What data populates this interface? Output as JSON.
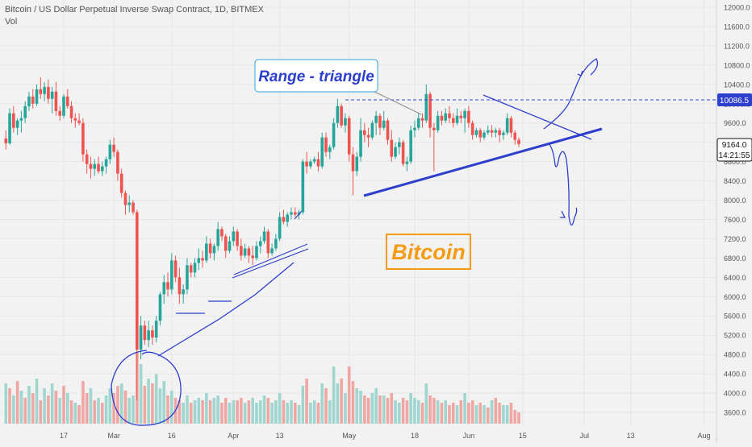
{
  "header": {
    "title": "Bitcoin / US Dollar Perpetual Inverse Swap Contract, 1D, BITMEX",
    "volume_label": "Vol"
  },
  "annotations": {
    "range_label": "Range - triangle",
    "watermark": "Bitcoin"
  },
  "price_tags": {
    "resistance": "10086.5",
    "last_price": "9164.0",
    "countdown": "14:21:55"
  },
  "colors": {
    "bull": "#26a69a",
    "bear": "#ef5350",
    "bull_vol": "#9fd6cf",
    "bear_vol": "#f0a6a3",
    "drawing": "#2d3fcc",
    "watermark": "#f39c12"
  },
  "chart_data": {
    "type": "candlestick",
    "y_axis": {
      "range": [
        3200,
        12200
      ],
      "ticks": [
        3600,
        4000,
        4400,
        4800,
        5200,
        5600,
        6000,
        6400,
        6800,
        7200,
        7600,
        8000,
        8400,
        8800,
        9200,
        9600,
        10000,
        10400,
        10800,
        11200,
        11600,
        12000
      ],
      "tick_labels": [
        "3600.0",
        "4000.0",
        "4400.0",
        "4800.0",
        "5200.0",
        "5600.0",
        "6000.0",
        "6400.0",
        "6800.0",
        "7200.0",
        "7600.0",
        "8000.0",
        "8400.0",
        "8800.0",
        "9200.0",
        "9600.0",
        "10000.0",
        "10400.0",
        "10800.0",
        "11200.0",
        "11600.0",
        "12000.0"
      ]
    },
    "x_axis": {
      "start_date": "2020-02-01",
      "tick_labels": [
        {
          "day": 16,
          "label": "17"
        },
        {
          "day": 29,
          "label": "Mar"
        },
        {
          "day": 44,
          "label": "16"
        },
        {
          "day": 60,
          "label": "Apr"
        },
        {
          "day": 72,
          "label": "13"
        },
        {
          "day": 90,
          "label": "May"
        },
        {
          "day": 107,
          "label": "18"
        },
        {
          "day": 121,
          "label": "Jun"
        },
        {
          "day": 135,
          "label": "15"
        },
        {
          "day": 151,
          "label": "Jul"
        },
        {
          "day": 163,
          "label": "13"
        },
        {
          "day": 182,
          "label": "Aug"
        }
      ]
    },
    "ohlc": [
      [
        9280,
        9450,
        9050,
        9180
      ],
      [
        9180,
        9900,
        9150,
        9800
      ],
      [
        9800,
        9950,
        9400,
        9500
      ],
      [
        9500,
        9700,
        9350,
        9650
      ],
      [
        9650,
        9850,
        9400,
        9700
      ],
      [
        9700,
        10050,
        9600,
        9950
      ],
      [
        9950,
        10250,
        9850,
        10150
      ],
      [
        10150,
        10300,
        9900,
        10000
      ],
      [
        10000,
        10400,
        9950,
        10300
      ],
      [
        10300,
        10550,
        10100,
        10200
      ],
      [
        10200,
        10450,
        10050,
        10350
      ],
      [
        10350,
        10500,
        10000,
        10100
      ],
      [
        10100,
        10350,
        9800,
        10250
      ],
      [
        10250,
        10450,
        9750,
        9850
      ],
      [
        9850,
        9950,
        9650,
        9750
      ],
      [
        9750,
        10200,
        9700,
        10150
      ],
      [
        10150,
        10300,
        9900,
        9950
      ],
      [
        9950,
        10050,
        9600,
        9700
      ],
      [
        9700,
        9800,
        9500,
        9650
      ],
      [
        9650,
        9800,
        9550,
        9600
      ],
      [
        9600,
        9700,
        8800,
        8950
      ],
      [
        8950,
        9050,
        8550,
        8750
      ],
      [
        8750,
        8900,
        8450,
        8650
      ],
      [
        8650,
        8850,
        8500,
        8750
      ],
      [
        8750,
        8900,
        8550,
        8600
      ],
      [
        8600,
        8800,
        8500,
        8700
      ],
      [
        8700,
        8900,
        8550,
        8850
      ],
      [
        8850,
        9250,
        8750,
        9150
      ],
      [
        9150,
        9300,
        8900,
        9000
      ],
      [
        9000,
        9050,
        8400,
        8550
      ],
      [
        8550,
        8650,
        8050,
        8150
      ],
      [
        8150,
        8200,
        7700,
        7900
      ],
      [
        7900,
        8100,
        7750,
        7950
      ],
      [
        7950,
        8000,
        7700,
        7750
      ],
      [
        7750,
        7800,
        3850,
        4900
      ],
      [
        4900,
        5600,
        4700,
        5400
      ],
      [
        5400,
        5500,
        5000,
        5100
      ],
      [
        5100,
        5500,
        4950,
        5300
      ],
      [
        5300,
        5400,
        5000,
        5150
      ],
      [
        5150,
        5600,
        5050,
        5500
      ],
      [
        5500,
        6100,
        5400,
        6050
      ],
      [
        6050,
        6450,
        5850,
        6300
      ],
      [
        6300,
        6500,
        6000,
        6150
      ],
      [
        6150,
        6900,
        6050,
        6750
      ],
      [
        6750,
        6850,
        6300,
        6400
      ],
      [
        6400,
        6600,
        5850,
        6050
      ],
      [
        6050,
        6250,
        5850,
        6150
      ],
      [
        6150,
        6800,
        6050,
        6650
      ],
      [
        6650,
        6700,
        6400,
        6500
      ],
      [
        6500,
        6800,
        6400,
        6700
      ],
      [
        6700,
        7000,
        6550,
        6800
      ],
      [
        6800,
        6950,
        6600,
        6750
      ],
      [
        6750,
        7250,
        6700,
        7100
      ],
      [
        7100,
        7200,
        6800,
        6900
      ],
      [
        6900,
        7100,
        6750,
        7050
      ],
      [
        7050,
        7550,
        6950,
        7400
      ],
      [
        7400,
        7450,
        7150,
        7250
      ],
      [
        7250,
        7300,
        6800,
        6950
      ],
      [
        6950,
        7250,
        6900,
        7150
      ],
      [
        7150,
        7450,
        7050,
        7350
      ],
      [
        7350,
        7400,
        6950,
        7050
      ],
      [
        7050,
        7200,
        6750,
        6850
      ],
      [
        6850,
        7100,
        6800,
        7000
      ],
      [
        7000,
        7050,
        6700,
        6850
      ],
      [
        6850,
        7050,
        6650,
        6800
      ],
      [
        6800,
        7150,
        6750,
        7050
      ],
      [
        7050,
        7250,
        6900,
        7150
      ],
      [
        7150,
        7450,
        7100,
        7350
      ],
      [
        7350,
        7400,
        6800,
        6900
      ],
      [
        6900,
        7100,
        6850,
        7000
      ],
      [
        7000,
        7300,
        6950,
        7200
      ],
      [
        7200,
        7750,
        7150,
        7650
      ],
      [
        7650,
        7800,
        7500,
        7550
      ],
      [
        7550,
        7750,
        7450,
        7700
      ],
      [
        7700,
        7850,
        7600,
        7750
      ],
      [
        7750,
        7850,
        7650,
        7700
      ],
      [
        7700,
        7800,
        7600,
        7750
      ],
      [
        7750,
        8850,
        7700,
        8800
      ],
      [
        8800,
        9000,
        8550,
        8700
      ],
      [
        8700,
        8850,
        8650,
        8800
      ],
      [
        8800,
        8900,
        8750,
        8850
      ],
      [
        8850,
        9000,
        8600,
        8700
      ],
      [
        8700,
        9400,
        8650,
        9300
      ],
      [
        9300,
        9400,
        8900,
        9000
      ],
      [
        9000,
        9150,
        8850,
        9100
      ],
      [
        9100,
        9700,
        9050,
        9600
      ],
      [
        9600,
        10100,
        9500,
        9950
      ],
      [
        9950,
        10000,
        9500,
        9550
      ],
      [
        9550,
        9800,
        9400,
        9700
      ],
      [
        9700,
        9750,
        8800,
        8950
      ],
      [
        8950,
        9100,
        8100,
        8600
      ],
      [
        8600,
        9000,
        8500,
        8900
      ],
      [
        8900,
        9700,
        8800,
        9450
      ],
      [
        9450,
        9600,
        9200,
        9350
      ],
      [
        9350,
        9500,
        9100,
        9300
      ],
      [
        9300,
        9650,
        9250,
        9600
      ],
      [
        9600,
        9850,
        9350,
        9750
      ],
      [
        9750,
        9800,
        9350,
        9500
      ],
      [
        9500,
        9850,
        9450,
        9650
      ],
      [
        9650,
        9700,
        9150,
        9250
      ],
      [
        9250,
        9450,
        8800,
        8900
      ],
      [
        8900,
        9200,
        8850,
        9100
      ],
      [
        9100,
        9300,
        8950,
        9200
      ],
      [
        9200,
        9250,
        8700,
        8750
      ],
      [
        8750,
        8900,
        8600,
        8800
      ],
      [
        8800,
        9550,
        8750,
        9450
      ],
      [
        9450,
        9650,
        9300,
        9500
      ],
      [
        9500,
        9800,
        9450,
        9700
      ],
      [
        9700,
        9800,
        9500,
        9650
      ],
      [
        9650,
        10400,
        9600,
        10200
      ],
      [
        10200,
        10250,
        9300,
        9500
      ],
      [
        9500,
        9600,
        8600,
        9450
      ],
      [
        9450,
        9850,
        9400,
        9750
      ],
      [
        9750,
        9850,
        9550,
        9650
      ],
      [
        9650,
        9900,
        9600,
        9800
      ],
      [
        9800,
        9950,
        9600,
        9700
      ],
      [
        9700,
        9800,
        9500,
        9600
      ],
      [
        9600,
        9900,
        9550,
        9750
      ],
      [
        9750,
        9850,
        9600,
        9700
      ],
      [
        9700,
        9900,
        9400,
        9850
      ],
      [
        9850,
        9950,
        9500,
        9600
      ],
      [
        9600,
        9650,
        9250,
        9350
      ],
      [
        9350,
        9500,
        9300,
        9450
      ],
      [
        9450,
        9500,
        9200,
        9300
      ],
      [
        9300,
        9450,
        9250,
        9400
      ],
      [
        9400,
        9550,
        9350,
        9450
      ],
      [
        9450,
        9550,
        9300,
        9400
      ],
      [
        9400,
        9500,
        9300,
        9450
      ],
      [
        9450,
        9500,
        9200,
        9350
      ],
      [
        9350,
        9450,
        9250,
        9400
      ],
      [
        9400,
        9800,
        9350,
        9700
      ],
      [
        9700,
        9750,
        9300,
        9400
      ],
      [
        9400,
        9450,
        9150,
        9250
      ],
      [
        9250,
        9300,
        9100,
        9164
      ]
    ],
    "first_candle_day": 1,
    "volume": [
      [
        4200,
        "bull"
      ],
      [
        4100,
        "bear"
      ],
      [
        3950,
        "bull"
      ],
      [
        4250,
        "bear"
      ],
      [
        4050,
        "bull"
      ],
      [
        3900,
        "bear"
      ],
      [
        4150,
        "bull"
      ],
      [
        4000,
        "bear"
      ],
      [
        4300,
        "bull"
      ],
      [
        3850,
        "bear"
      ],
      [
        4100,
        "bull"
      ],
      [
        3950,
        "bear"
      ],
      [
        4200,
        "bull"
      ],
      [
        4050,
        "bear"
      ],
      [
        3900,
        "bull"
      ],
      [
        4150,
        "bear"
      ],
      [
        4000,
        "bull"
      ],
      [
        3850,
        "bear"
      ],
      [
        3800,
        "bull"
      ],
      [
        3750,
        "bear"
      ],
      [
        4250,
        "bear"
      ],
      [
        4000,
        "bear"
      ],
      [
        4100,
        "bull"
      ],
      [
        3850,
        "bear"
      ],
      [
        3900,
        "bull"
      ],
      [
        3800,
        "bear"
      ],
      [
        3950,
        "bull"
      ],
      [
        4100,
        "bull"
      ],
      [
        4000,
        "bear"
      ],
      [
        4150,
        "bear"
      ],
      [
        4200,
        "bull"
      ],
      [
        4050,
        "bear"
      ],
      [
        3900,
        "bull"
      ],
      [
        3950,
        "bull"
      ],
      [
        4850,
        "bear"
      ],
      [
        4600,
        "bull"
      ],
      [
        4150,
        "bear"
      ],
      [
        4300,
        "bull"
      ],
      [
        4200,
        "bear"
      ],
      [
        4400,
        "bull"
      ],
      [
        4100,
        "bull"
      ],
      [
        4250,
        "bull"
      ],
      [
        3950,
        "bear"
      ],
      [
        4050,
        "bull"
      ],
      [
        3900,
        "bear"
      ],
      [
        3850,
        "bear"
      ],
      [
        3800,
        "bull"
      ],
      [
        3950,
        "bull"
      ],
      [
        3800,
        "bear"
      ],
      [
        3850,
        "bull"
      ],
      [
        3900,
        "bull"
      ],
      [
        3850,
        "bear"
      ],
      [
        4000,
        "bull"
      ],
      [
        3850,
        "bear"
      ],
      [
        3900,
        "bull"
      ],
      [
        3950,
        "bull"
      ],
      [
        3800,
        "bear"
      ],
      [
        3900,
        "bear"
      ],
      [
        3800,
        "bull"
      ],
      [
        3850,
        "bull"
      ],
      [
        3850,
        "bear"
      ],
      [
        3900,
        "bear"
      ],
      [
        3800,
        "bull"
      ],
      [
        3850,
        "bear"
      ],
      [
        3900,
        "bull"
      ],
      [
        3800,
        "bull"
      ],
      [
        3850,
        "bull"
      ],
      [
        3950,
        "bull"
      ],
      [
        3900,
        "bear"
      ],
      [
        3800,
        "bull"
      ],
      [
        3850,
        "bull"
      ],
      [
        4000,
        "bull"
      ],
      [
        3850,
        "bear"
      ],
      [
        3800,
        "bull"
      ],
      [
        3850,
        "bull"
      ],
      [
        3800,
        "bear"
      ],
      [
        3750,
        "bull"
      ],
      [
        4150,
        "bull"
      ],
      [
        4300,
        "bear"
      ],
      [
        3800,
        "bull"
      ],
      [
        3850,
        "bull"
      ],
      [
        3800,
        "bear"
      ],
      [
        4200,
        "bull"
      ],
      [
        4100,
        "bear"
      ],
      [
        3850,
        "bull"
      ],
      [
        4550,
        "bull"
      ],
      [
        4200,
        "bull"
      ],
      [
        4300,
        "bear"
      ],
      [
        4000,
        "bull"
      ],
      [
        4550,
        "bear"
      ],
      [
        4250,
        "bear"
      ],
      [
        4100,
        "bull"
      ],
      [
        4050,
        "bull"
      ],
      [
        3950,
        "bear"
      ],
      [
        3900,
        "bear"
      ],
      [
        4000,
        "bull"
      ],
      [
        4100,
        "bull"
      ],
      [
        3950,
        "bear"
      ],
      [
        3950,
        "bull"
      ],
      [
        3900,
        "bear"
      ],
      [
        4000,
        "bear"
      ],
      [
        3850,
        "bull"
      ],
      [
        3800,
        "bull"
      ],
      [
        3900,
        "bear"
      ],
      [
        3850,
        "bear"
      ],
      [
        4000,
        "bull"
      ],
      [
        3900,
        "bull"
      ],
      [
        3850,
        "bull"
      ],
      [
        3800,
        "bear"
      ],
      [
        4200,
        "bull"
      ],
      [
        3950,
        "bear"
      ],
      [
        3900,
        "bear"
      ],
      [
        3850,
        "bull"
      ],
      [
        3800,
        "bear"
      ],
      [
        3850,
        "bull"
      ],
      [
        3750,
        "bear"
      ],
      [
        3800,
        "bear"
      ],
      [
        3750,
        "bull"
      ],
      [
        3850,
        "bear"
      ],
      [
        4000,
        "bull"
      ],
      [
        3800,
        "bear"
      ],
      [
        3850,
        "bear"
      ],
      [
        3750,
        "bull"
      ],
      [
        3800,
        "bear"
      ],
      [
        3750,
        "bull"
      ],
      [
        3700,
        "bear"
      ],
      [
        3850,
        "bull"
      ],
      [
        3900,
        "bear"
      ],
      [
        3800,
        "bear"
      ],
      [
        3750,
        "bull"
      ],
      [
        3750,
        "bull"
      ],
      [
        3800,
        "bear"
      ],
      [
        3650,
        "bear"
      ],
      [
        3600,
        "bear"
      ]
    ]
  }
}
